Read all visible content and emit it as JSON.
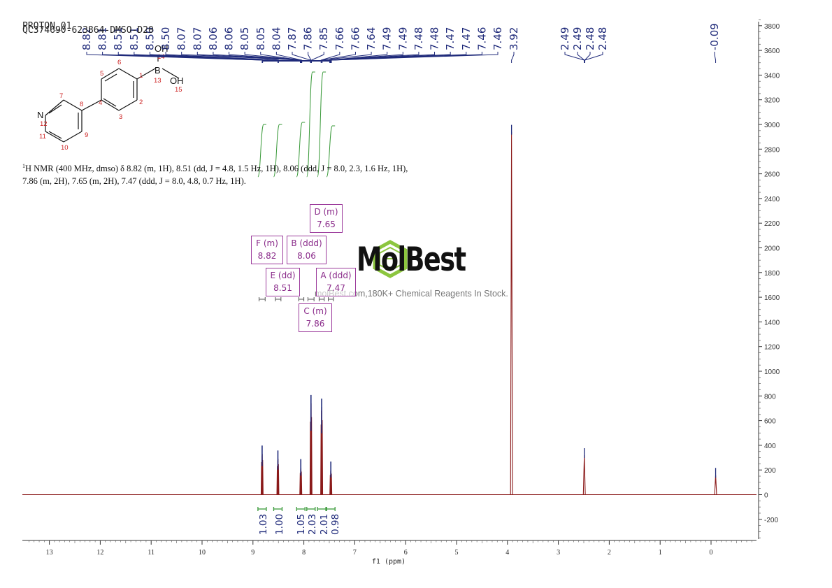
{
  "header": {
    "line1": "PROTON_01",
    "line2": "QC374690-623864-DMSO-D20"
  },
  "description": {
    "nucleus_sup": "1",
    "text": "H NMR (400 MHz, dmso) δ 8.82 (m, 1H), 8.51 (dd, J = 4.8, 1.5 Hz, 1H), 8.06 (ddd, J = 8.0, 2.3, 1.6 Hz, 1H), 7.86 (m, 2H), 7.65 (m, 2H), 7.47 (ddd, J = 8.0, 4.8, 0.7 Hz, 1H)."
  },
  "watermark": {
    "word": "MolBest",
    "tagline": "molBest.com,180K+ Chemical Reagents In Stock."
  },
  "structure": {
    "atoms": [
      "B",
      "OH",
      "OH",
      "N"
    ],
    "numbers": [
      "1",
      "2",
      "3",
      "4",
      "5",
      "6",
      "7",
      "8",
      "9",
      "10",
      "11",
      "12",
      "13",
      "14",
      "15"
    ]
  },
  "multiplet_boxes": [
    {
      "id": "D",
      "label": "D (m)",
      "shift": "7.65"
    },
    {
      "id": "F",
      "label": "F (m)",
      "shift": "8.82"
    },
    {
      "id": "B",
      "label": "B (ddd)",
      "shift": "8.06"
    },
    {
      "id": "E",
      "label": "E (dd)",
      "shift": "8.51"
    },
    {
      "id": "A",
      "label": "A (ddd)",
      "shift": "7.47"
    },
    {
      "id": "C",
      "label": "C (m)",
      "shift": "7.86"
    }
  ],
  "colors": {
    "spectrum": "#8b1a1a",
    "peak_labels": "#1f2a7a",
    "integral": "#3a9a3a",
    "multiplet": "#9c3b9c",
    "atom_number": "#cc2222",
    "logo_green": "#8cc63f"
  },
  "chart_data": {
    "type": "line",
    "title": "",
    "xlabel": "f1 (ppm)",
    "ylabel": "",
    "x_reversed": true,
    "xlim": [
      13.5,
      -0.9
    ],
    "ylim": [
      -380,
      3880
    ],
    "x_ticks": [
      "13",
      "12",
      "11",
      "10",
      "9",
      "8",
      "7",
      "6",
      "5",
      "4",
      "3",
      "2",
      "1",
      "0"
    ],
    "y_ticks": [
      "3800",
      "3600",
      "3400",
      "3200",
      "3000",
      "2800",
      "2600",
      "2400",
      "2200",
      "2000",
      "1800",
      "1600",
      "1400",
      "1200",
      "1000",
      "800",
      "600",
      "400",
      "200",
      "0",
      "-200"
    ],
    "peak_labels": [
      "8.82",
      "8.81",
      "8.51",
      "8.51",
      "8.50",
      "8.50",
      "8.07",
      "8.07",
      "8.06",
      "8.06",
      "8.05",
      "8.05",
      "8.04",
      "7.87",
      "7.86",
      "7.85",
      "7.66",
      "7.66",
      "7.64",
      "7.49",
      "7.49",
      "7.48",
      "7.48",
      "7.47",
      "7.47",
      "7.46",
      "7.46",
      "3.92",
      "2.49",
      "2.49",
      "2.48",
      "2.48",
      "-0.09"
    ],
    "peaks": [
      {
        "ppm": 8.82,
        "height": 330
      },
      {
        "ppm": 8.51,
        "height": 290
      },
      {
        "ppm": 8.06,
        "height": 220
      },
      {
        "ppm": 7.86,
        "height": 740
      },
      {
        "ppm": 7.65,
        "height": 710
      },
      {
        "ppm": 7.47,
        "height": 200
      },
      {
        "ppm": 3.92,
        "height": 2940
      },
      {
        "ppm": 2.49,
        "height": 320
      },
      {
        "ppm": -0.09,
        "height": 160
      }
    ],
    "integrals": [
      {
        "ppm": 8.82,
        "value": "1.03"
      },
      {
        "ppm": 8.51,
        "value": "1.00"
      },
      {
        "ppm": 8.06,
        "value": "1.05"
      },
      {
        "ppm": 7.86,
        "value": "2.03"
      },
      {
        "ppm": 7.65,
        "value": "2.01"
      },
      {
        "ppm": 7.47,
        "value": "0.98"
      }
    ]
  }
}
